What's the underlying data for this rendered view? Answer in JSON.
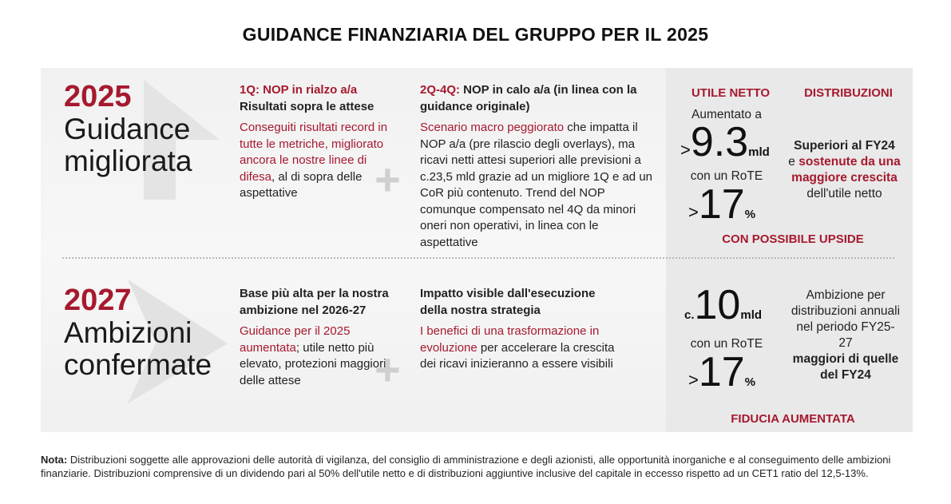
{
  "title": "GUIDANCE FINANZIARIA DEL GRUPPO PER IL 2025",
  "row1": {
    "year": "2025",
    "subtitle_line1": "Guidance",
    "subtitle_line2": "migliorata",
    "col1": {
      "head_red": "1Q: NOP in rialzo a/a",
      "head_black": "Risultati sopra le attese",
      "body_red": "Conseguiti risultati record in tutte le metriche, migliorato ancora le nostre linee di difesa",
      "body_black": ", al di sopra delle aspettative"
    },
    "col2": {
      "head_red": "2Q-4Q:",
      "head_black": " NOP in calo a/a (in linea con la guidance originale)",
      "body_red": "Scenario macro peggiorato",
      "body_black": " che impatta il NOP a/a (pre rilascio degli overlays), ma ricavi netti attesi superiori alle previsioni a c.23,5 mld grazie ad un migliore 1Q e ad un CoR più contenuto. Trend del NOP comunque compensato nel 4Q da minori oneri non operativi, in linea con le aspettative"
    },
    "right": {
      "utile_header": "UTILE NETTO",
      "distrib_header": "DISTRIBUZIONI",
      "aumentato_a": "Aumentato a",
      "net_gt": ">",
      "net_value": "9.3",
      "net_unit": "mld",
      "rote_label": "con un RoTE",
      "rote_gt": ">",
      "rote_value": "17",
      "rote_unit": "%",
      "distrib_b1": "Superiori al FY24",
      "distrib_e": "e ",
      "distrib_red": "sostenute da una maggiore crescita",
      "distrib_tail": " dell'utile netto",
      "footer": "CON POSSIBILE UPSIDE"
    }
  },
  "row2": {
    "year": "2027",
    "subtitle_line1": "Ambizioni",
    "subtitle_line2": "confermate",
    "col1": {
      "head_black": "Base più alta per la nostra ambizione nel 2026-27",
      "body_red": "Guidance per il 2025 aumentata",
      "body_black": "; utile netto più elevato, protezioni maggiori delle attese"
    },
    "col2": {
      "head_black": "Impatto visible dall'esecuzione della nostra strategia",
      "body_red": "I benefici di una trasformazione in evoluzione",
      "body_black": " per accelerare la crescita dei ricavi inizieranno a essere visibili"
    },
    "right": {
      "net_prefix": "c.",
      "net_value": "10",
      "net_unit": "mld",
      "rote_label": "con un RoTE",
      "rote_gt": ">",
      "rote_value": "17",
      "rote_unit": "%",
      "distrib_text": "Ambizione per distribuzioni annuali nel periodo FY25-27",
      "distrib_bold": "maggiori di quelle del FY24",
      "footer": "FIDUCIA AUMENTATA"
    }
  },
  "note": {
    "label": "Nota:",
    "text": " Distribuzioni soggette alle approvazioni delle autorità di vigilanza, del consiglio di amministrazione e degli azionisti, alle opportunità inorganiche e al conseguimento delle ambizioni finanziarie. Distribuzioni comprensive di un dividendo pari al 50% dell'utile netto e di distribuzioni aggiuntive inclusive del capitale in eccesso rispetto ad un CET1 ratio del 12,5-13%."
  }
}
